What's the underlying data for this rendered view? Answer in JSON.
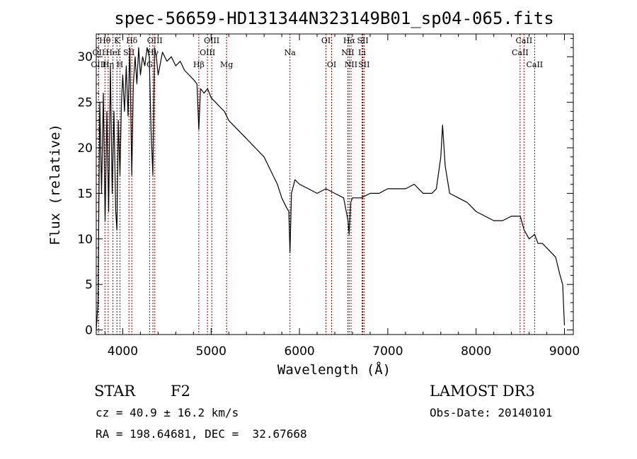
{
  "chart_data": {
    "type": "line",
    "title": "spec-56659-HD131344N323149B01_sp04-065.fits",
    "xlabel": "Wavelength (Å)",
    "ylabel": "Flux (relative)",
    "xlim": [
      3700,
      9100
    ],
    "ylim": [
      -0.5,
      32.5
    ],
    "x_ticks": [
      4000,
      5000,
      6000,
      7000,
      8000,
      9000
    ],
    "y_ticks": [
      0,
      5,
      10,
      15,
      20,
      25,
      30
    ],
    "line_color": "#000000",
    "marker_color": "#8b0000",
    "spectral_lines": [
      {
        "label": "Hθ",
        "wavelength": 3798,
        "row": 0
      },
      {
        "label": "OII",
        "wavelength": 3727,
        "row": 1
      },
      {
        "label": "OIII",
        "wavelength": 3727,
        "row": 2
      },
      {
        "label": "K",
        "wavelength": 3934,
        "row": 0
      },
      {
        "label": "HeI",
        "wavelength": 3889,
        "row": 1
      },
      {
        "label": "Hη",
        "wavelength": 3835,
        "row": 2
      },
      {
        "label": "SII",
        "wavelength": 4070,
        "row": 1
      },
      {
        "label": "H",
        "wavelength": 3968,
        "row": 2
      },
      {
        "label": "Hδ",
        "wavelength": 4102,
        "row": 0
      },
      {
        "label": "OIII",
        "wavelength": 4363,
        "row": 0
      },
      {
        "label": "Hγ",
        "wavelength": 4341,
        "row": 1
      },
      {
        "label": "G",
        "wavelength": 4304,
        "row": 2
      },
      {
        "label": "Hβ",
        "wavelength": 4861,
        "row": 2
      },
      {
        "label": "OIII",
        "wavelength": 5007,
        "row": 0
      },
      {
        "label": "OIII",
        "wavelength": 4959,
        "row": 1
      },
      {
        "label": "Mg",
        "wavelength": 5175,
        "row": 2
      },
      {
        "label": "Na",
        "wavelength": 5893,
        "row": 1
      },
      {
        "label": "OI",
        "wavelength": 6300,
        "row": 0
      },
      {
        "label": "OI",
        "wavelength": 6364,
        "row": 2
      },
      {
        "label": "Hα",
        "wavelength": 6563,
        "row": 0
      },
      {
        "label": "NII",
        "wavelength": 6548,
        "row": 1
      },
      {
        "label": "NII",
        "wavelength": 6584,
        "row": 2
      },
      {
        "label": "SII",
        "wavelength": 6717,
        "row": 0
      },
      {
        "label": "Li",
        "wavelength": 6708,
        "row": 1
      },
      {
        "label": "SII",
        "wavelength": 6731,
        "row": 2
      },
      {
        "label": "CaII",
        "wavelength": 8542,
        "row": 0
      },
      {
        "label": "CaII",
        "wavelength": 8498,
        "row": 1
      },
      {
        "label": "CaII",
        "wavelength": 8662,
        "row": 2
      }
    ],
    "series": [
      {
        "name": "flux",
        "x": [
          3700,
          3720,
          3740,
          3760,
          3780,
          3800,
          3820,
          3840,
          3860,
          3880,
          3900,
          3920,
          3934,
          3950,
          3968,
          3985,
          4000,
          4020,
          4040,
          4060,
          4080,
          4102,
          4120,
          4140,
          4160,
          4180,
          4200,
          4225,
          4250,
          4275,
          4300,
          4320,
          4341,
          4360,
          4380,
          4400,
          4450,
          4500,
          4550,
          4600,
          4650,
          4700,
          4750,
          4800,
          4840,
          4861,
          4880,
          4920,
          4960,
          5000,
          5050,
          5100,
          5150,
          5200,
          5300,
          5400,
          5500,
          5600,
          5700,
          5750,
          5800,
          5850,
          5880,
          5893,
          5910,
          5950,
          6000,
          6100,
          6200,
          6300,
          6400,
          6500,
          6550,
          6563,
          6580,
          6600,
          6650,
          6700,
          6800,
          6900,
          7000,
          7100,
          7200,
          7300,
          7400,
          7500,
          7550,
          7600,
          7620,
          7650,
          7700,
          7800,
          7900,
          8000,
          8100,
          8200,
          8300,
          8400,
          8500,
          8542,
          8600,
          8662,
          8700,
          8750,
          8800,
          8850,
          8900,
          8950,
          8980,
          9000
        ],
        "y": [
          0.0,
          3.0,
          25.0,
          15.0,
          26.0,
          12.0,
          24.0,
          13.0,
          29.0,
          15.0,
          24.0,
          13.0,
          11.0,
          23.0,
          17.0,
          25.0,
          28.0,
          24.0,
          29.0,
          23.5,
          31.0,
          17.0,
          27.0,
          30.0,
          27.0,
          31.0,
          28.0,
          30.0,
          29.0,
          31.0,
          30.0,
          22.0,
          17.0,
          31.0,
          30.0,
          28.0,
          30.5,
          29.5,
          30.0,
          29.0,
          29.5,
          28.5,
          28.0,
          27.5,
          27.0,
          22.0,
          26.5,
          26.0,
          26.5,
          25.5,
          25.0,
          24.5,
          24.0,
          23.0,
          22.0,
          21.0,
          20.0,
          19.0,
          17.0,
          16.0,
          14.5,
          13.5,
          13.0,
          8.5,
          15.0,
          16.5,
          16.0,
          15.5,
          15.0,
          15.5,
          15.0,
          14.5,
          12.0,
          10.5,
          14.0,
          14.5,
          14.5,
          14.5,
          15.0,
          15.0,
          15.5,
          15.5,
          15.5,
          16.0,
          15.0,
          15.0,
          15.5,
          19.0,
          22.5,
          18.0,
          15.0,
          14.5,
          14.0,
          13.0,
          12.5,
          12.0,
          12.0,
          12.5,
          12.5,
          11.0,
          10.0,
          10.5,
          9.5,
          9.5,
          9.0,
          8.5,
          8.0,
          6.0,
          5.0,
          0.5
        ]
      }
    ]
  },
  "info": {
    "object_type": "STAR",
    "spectral_class": "F2",
    "survey": "LAMOST DR3",
    "cz": "cz = 40.9 ± 16.2 km/s",
    "obs_date": "Obs-Date: 20140101",
    "coords": "RA = 198.64681, DEC =  32.67668"
  }
}
